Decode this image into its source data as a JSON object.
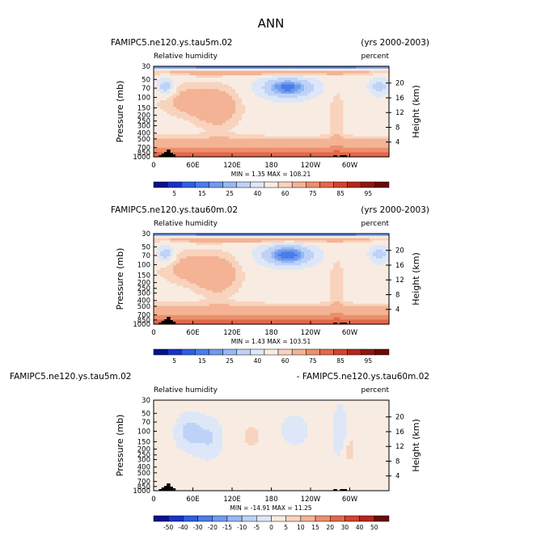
{
  "figure_title": "ANN",
  "chart_data": [
    {
      "type": "heatmap",
      "case_title": "FAMIPC5.ne120.ys.tau5m.02",
      "years": "(yrs 2000-2003)",
      "variable": "Relative humidity",
      "units": "percent",
      "xticks": [
        "0",
        "60E",
        "120E",
        "180",
        "120W",
        "60W"
      ],
      "xtick_values": [
        0,
        60,
        120,
        180,
        240,
        300
      ],
      "xlim": [
        0,
        360
      ],
      "ylabel": "Pressure (mb)",
      "yticks_pressure": [
        "30",
        "50",
        "70",
        "100",
        "150",
        "200",
        "250",
        "300",
        "400",
        "500",
        "700",
        "850",
        "1000"
      ],
      "ytick_values": [
        30,
        50,
        70,
        100,
        150,
        200,
        250,
        300,
        400,
        500,
        700,
        850,
        1000
      ],
      "ylim": [
        1000,
        30
      ],
      "ylabel_right": "Height (km)",
      "yticks_height": [
        "20",
        "16",
        "12",
        "8",
        "4"
      ],
      "yheight_values": [
        20,
        16,
        12,
        8,
        4
      ],
      "stats": "MIN =    1.35   MAX = 108.21",
      "colorbar_labels": [
        "5",
        "15",
        "25",
        "40",
        "60",
        "75",
        "85",
        "95"
      ],
      "colorbar_colors": [
        "#08108f",
        "#1832c8",
        "#2f5ee0",
        "#4a7de8",
        "#6f9bef",
        "#97b8f3",
        "#bdd2f6",
        "#dde7f8",
        "#f8ece2",
        "#f8d3bd",
        "#f3b394",
        "#ec8f6c",
        "#e2684a",
        "#d1432e",
        "#b4261d",
        "#8e1611",
        "#6a0a08"
      ]
    },
    {
      "type": "heatmap",
      "case_title": "FAMIPC5.ne120.ys.tau60m.02",
      "years": "(yrs 2000-2003)",
      "variable": "Relative humidity",
      "units": "percent",
      "xticks": [
        "0",
        "60E",
        "120E",
        "180",
        "120W",
        "60W"
      ],
      "xtick_values": [
        0,
        60,
        120,
        180,
        240,
        300
      ],
      "xlim": [
        0,
        360
      ],
      "ylabel": "Pressure (mb)",
      "yticks_pressure": [
        "30",
        "50",
        "70",
        "100",
        "150",
        "200",
        "250",
        "300",
        "400",
        "500",
        "700",
        "850",
        "1000"
      ],
      "ytick_values": [
        30,
        50,
        70,
        100,
        150,
        200,
        250,
        300,
        400,
        500,
        700,
        850,
        1000
      ],
      "ylim": [
        1000,
        30
      ],
      "ylabel_right": "Height (km)",
      "yticks_height": [
        "20",
        "16",
        "12",
        "8",
        "4"
      ],
      "yheight_values": [
        20,
        16,
        12,
        8,
        4
      ],
      "stats": "MIN =    1.43   MAX = 103.51",
      "colorbar_labels": [
        "5",
        "15",
        "25",
        "40",
        "60",
        "75",
        "85",
        "95"
      ],
      "colorbar_colors": [
        "#08108f",
        "#1832c8",
        "#2f5ee0",
        "#4a7de8",
        "#6f9bef",
        "#97b8f3",
        "#bdd2f6",
        "#dde7f8",
        "#f8ece2",
        "#f8d3bd",
        "#f3b394",
        "#ec8f6c",
        "#e2684a",
        "#d1432e",
        "#b4261d",
        "#8e1611",
        "#6a0a08"
      ]
    },
    {
      "type": "heatmap",
      "case_title": "FAMIPC5.ne120.ys.tau5m.02",
      "years": "- FAMIPC5.ne120.ys.tau60m.02",
      "variable": "Relative humidity",
      "units": "percent",
      "xticks": [
        "0",
        "60E",
        "120E",
        "180",
        "120W",
        "60W"
      ],
      "xtick_values": [
        0,
        60,
        120,
        180,
        240,
        300
      ],
      "xlim": [
        0,
        360
      ],
      "ylabel": "Pressure (mb)",
      "yticks_pressure": [
        "30",
        "50",
        "70",
        "100",
        "150",
        "200",
        "250",
        "300",
        "400",
        "500",
        "700",
        "850",
        "1000"
      ],
      "ytick_values": [
        30,
        50,
        70,
        100,
        150,
        200,
        250,
        300,
        400,
        500,
        700,
        850,
        1000
      ],
      "ylim": [
        1000,
        30
      ],
      "ylabel_right": "Height (km)",
      "yticks_height": [
        "20",
        "16",
        "12",
        "8",
        "4"
      ],
      "yheight_values": [
        20,
        16,
        12,
        8,
        4
      ],
      "stats": "MIN = -14.91   MAX =   11.25",
      "colorbar_labels": [
        "-50",
        "-40",
        "-30",
        "-20",
        "-15",
        "-10",
        "-5",
        "0",
        "5",
        "10",
        "15",
        "20",
        "30",
        "40",
        "50"
      ],
      "colorbar_colors": [
        "#08108f",
        "#1832c8",
        "#2f5ee0",
        "#4a7de8",
        "#6f9bef",
        "#97b8f3",
        "#bdd2f6",
        "#dde7f8",
        "#f8ece2",
        "#f8d3bd",
        "#f3b394",
        "#ec8f6c",
        "#e2684a",
        "#d1432e",
        "#b4261d",
        "#6a0a08"
      ]
    }
  ]
}
